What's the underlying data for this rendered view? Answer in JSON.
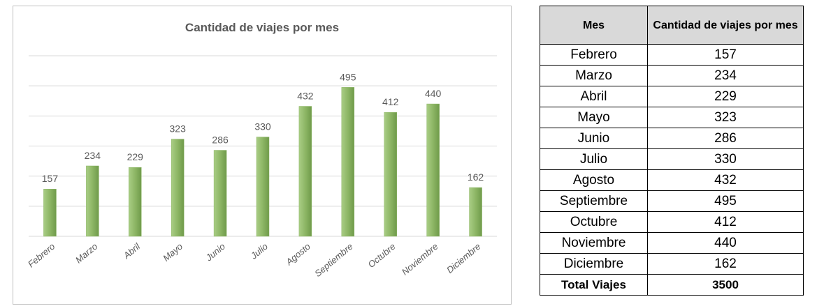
{
  "chart_data": {
    "type": "bar",
    "title": "Cantidad de viajes por mes",
    "categories": [
      "Febrero",
      "Marzo",
      "Abril",
      "Mayo",
      "Junio",
      "Julio",
      "Agosto",
      "Septiembre",
      "Octubre",
      "Noviembre",
      "Diciembre"
    ],
    "values": [
      157,
      234,
      229,
      323,
      286,
      330,
      432,
      495,
      412,
      440,
      162
    ],
    "color": "#8db665",
    "ylim": [
      0,
      600
    ],
    "yticks": [
      0,
      100,
      200,
      300,
      400,
      500,
      600
    ],
    "grid": true
  },
  "table": {
    "header": [
      "Mes",
      "Cantidad de viajes por mes"
    ],
    "rows": [
      [
        "Febrero",
        157
      ],
      [
        "Marzo",
        234
      ],
      [
        "Abril",
        229
      ],
      [
        "Mayo",
        323
      ],
      [
        "Junio",
        286
      ],
      [
        "Julio",
        330
      ],
      [
        "Agosto",
        432
      ],
      [
        "Septiembre",
        495
      ],
      [
        "Octubre",
        412
      ],
      [
        "Noviembre",
        440
      ],
      [
        "Diciembre",
        162
      ]
    ],
    "footer": [
      "Total Viajes",
      3500
    ]
  }
}
